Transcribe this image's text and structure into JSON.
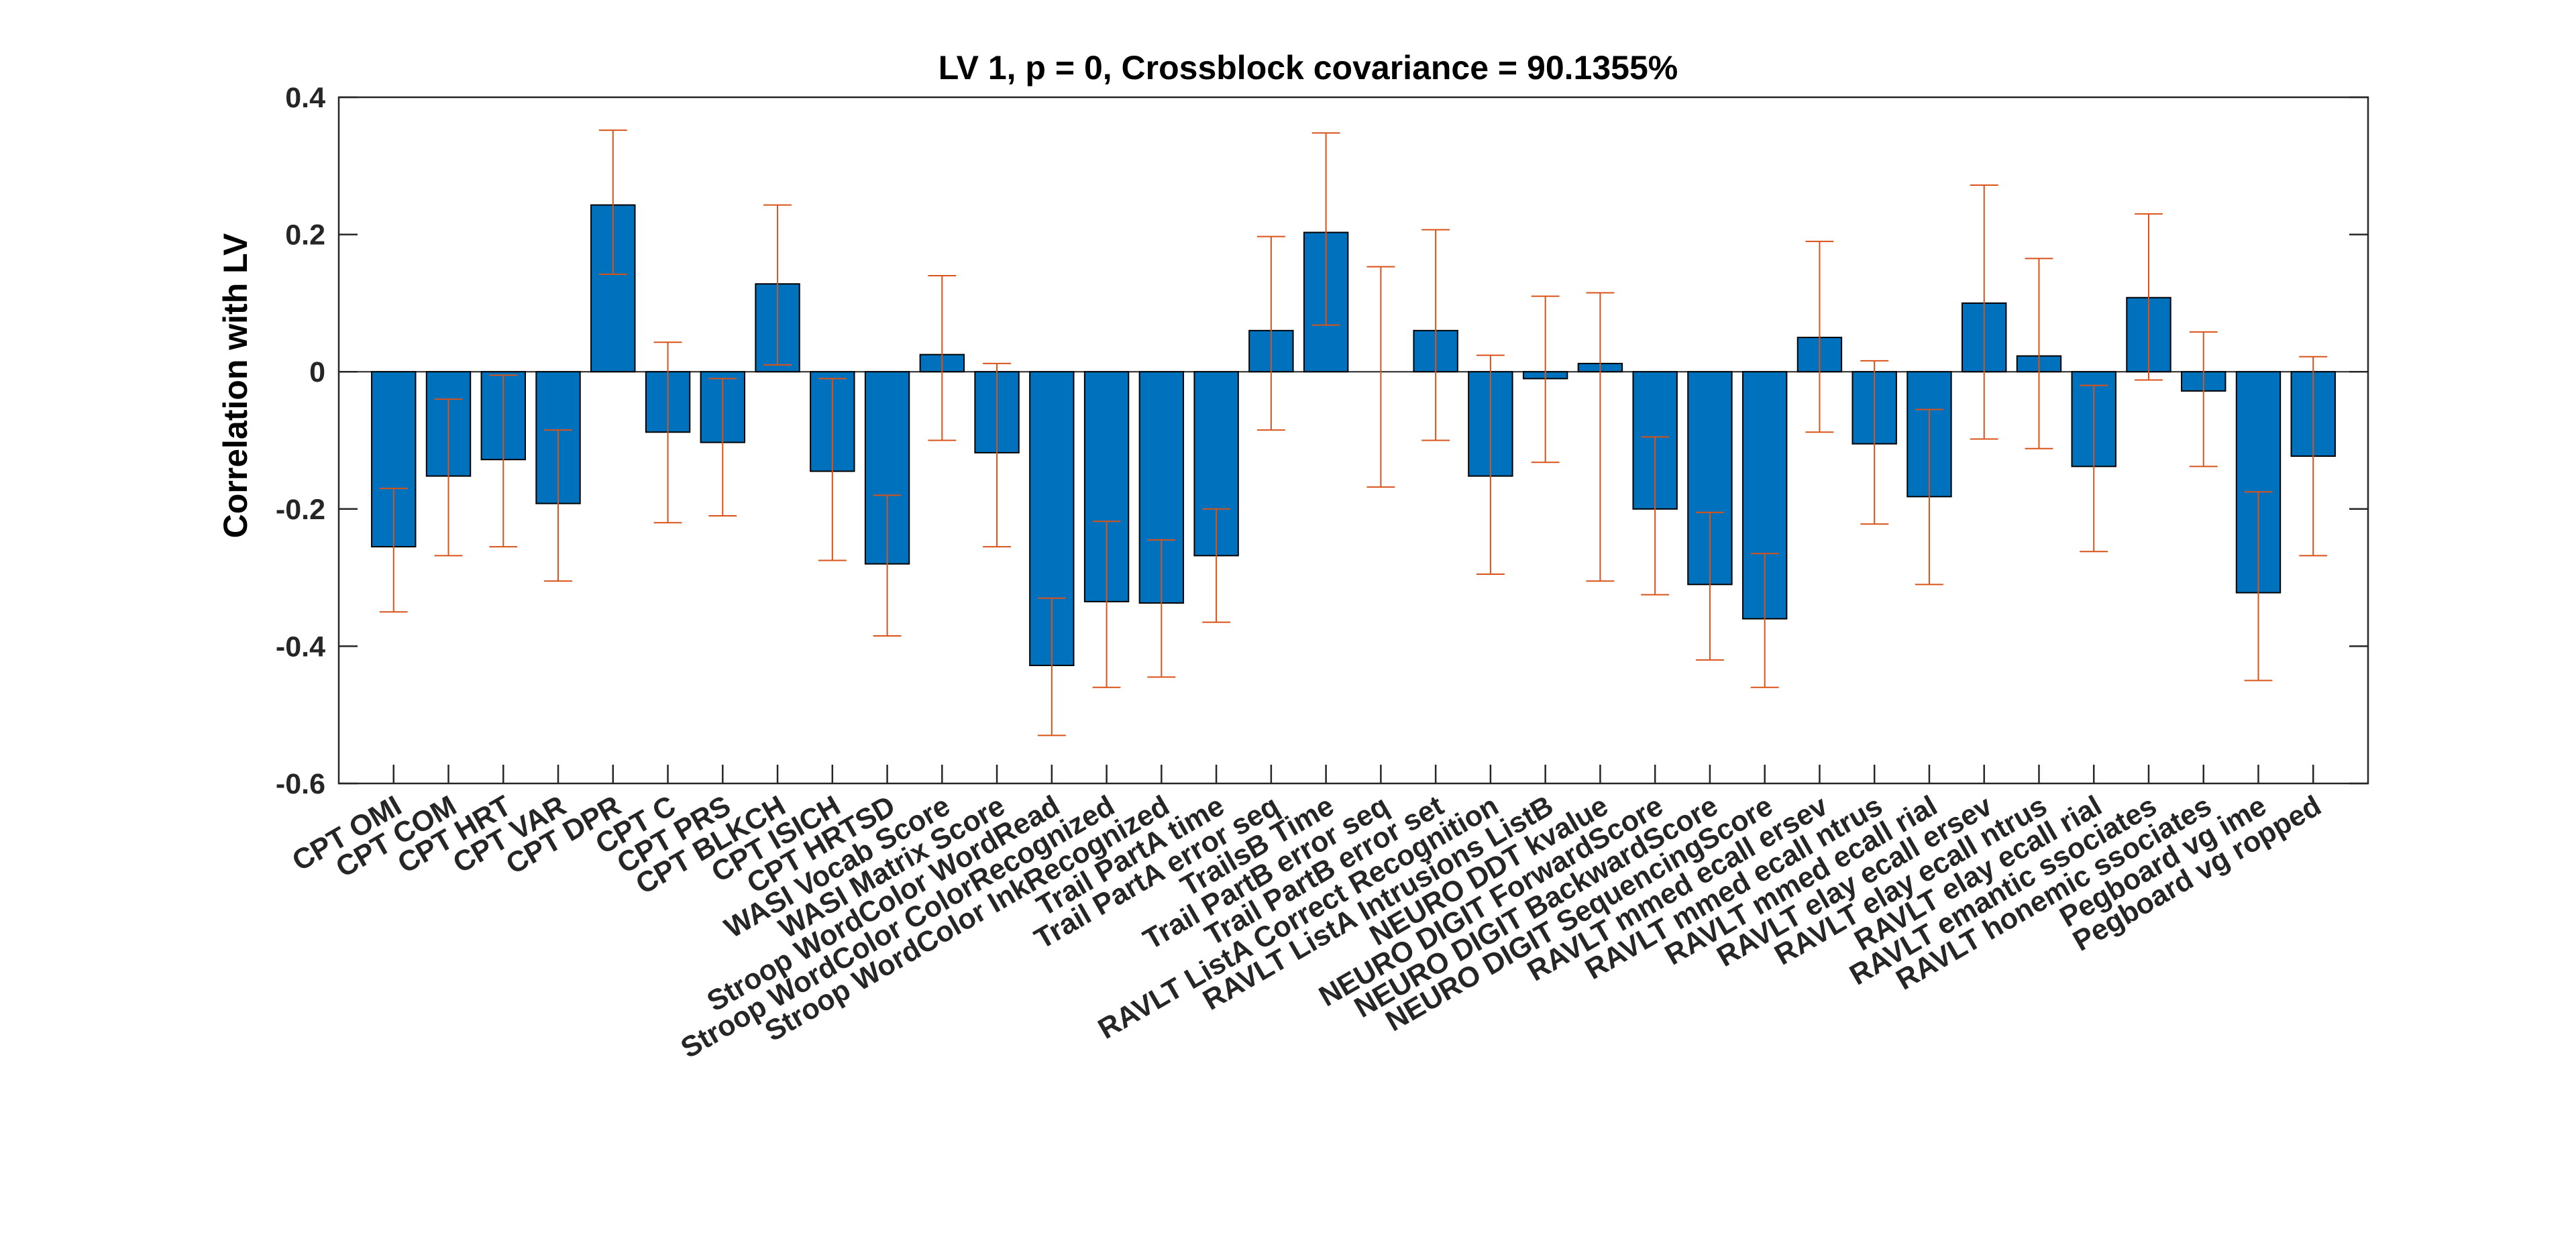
{
  "chart_data": {
    "type": "bar",
    "title": "LV 1, p = 0, Crossblock covariance = 90.1355%",
    "xlabel": "",
    "ylabel": "Correlation with LV",
    "ylim": [
      -0.6,
      0.4
    ],
    "yticks": [
      "-0.6",
      "-0.4",
      "-0.2",
      "0",
      "0.2",
      "0.4"
    ],
    "grid": false,
    "legend": "none",
    "colors": {
      "bar": "#0072BD",
      "bar_edge": "#000000",
      "errorbar": "#D95319",
      "axis": "#262626"
    },
    "categories": [
      "CPT OMI",
      "CPT COM",
      "CPT HRT",
      "CPT VAR",
      "CPT DPR",
      "CPT C",
      "CPT PRS",
      "CPT BLKCH",
      "CPT ISICH",
      "CPT HRTSD",
      "WASI Vocab Score",
      "WASI Matrix Score",
      "Stroop WordColor WordRead",
      "Stroop WordColor ColorRecognized",
      "Stroop WordColor InkRecognized",
      "Trail PartA time",
      "Trail PartA error seq",
      "TrailsB Time",
      "Trail PartB error seq",
      "Trail PartB error set",
      "RAVLT ListA Correct Recognition",
      "RAVLT ListA Intrusions ListB",
      "NEURO DDT kvalue",
      "NEURO DIGIT ForwardScore",
      "NEURO DIGIT BackwardScore",
      "NEURO DIGIT SequencingScore",
      "RAVLT mmed ecall ersev",
      "RAVLT mmed ecall ntrus",
      "RAVLT mmed ecall rial",
      "RAVLT elay ecall ersev",
      "RAVLT elay ecall ntrus",
      "RAVLT elay ecall rial",
      "RAVLT emantic ssociates",
      "RAVLT honemic ssociates",
      "Pegboard vg ime",
      "Pegboard vg ropped"
    ],
    "values": [
      -0.255,
      -0.152,
      -0.128,
      -0.192,
      0.243,
      -0.088,
      -0.103,
      0.128,
      -0.145,
      -0.28,
      0.025,
      -0.118,
      -0.428,
      -0.335,
      -0.337,
      -0.268,
      0.06,
      0.203,
      0.0,
      0.06,
      -0.152,
      -0.01,
      0.012,
      -0.2,
      -0.31,
      -0.36,
      0.05,
      -0.105,
      -0.182,
      0.1,
      0.023,
      -0.138,
      0.108,
      -0.028,
      -0.322,
      -0.123
    ],
    "error_low": [
      -0.35,
      -0.268,
      -0.255,
      -0.305,
      0.142,
      -0.22,
      -0.21,
      0.01,
      -0.275,
      -0.385,
      -0.1,
      -0.255,
      -0.53,
      -0.46,
      -0.445,
      -0.365,
      -0.085,
      0.068,
      -0.168,
      -0.1,
      -0.295,
      -0.132,
      -0.305,
      -0.325,
      -0.42,
      -0.46,
      -0.088,
      -0.222,
      -0.31,
      -0.098,
      -0.112,
      -0.262,
      -0.012,
      -0.138,
      -0.45,
      -0.268
    ],
    "error_high": [
      -0.17,
      -0.04,
      -0.005,
      -0.085,
      0.352,
      0.043,
      -0.01,
      0.243,
      -0.01,
      -0.18,
      0.14,
      0.012,
      -0.33,
      -0.218,
      -0.245,
      -0.2,
      0.197,
      0.348,
      0.153,
      0.207,
      0.024,
      0.11,
      0.115,
      -0.095,
      -0.205,
      -0.265,
      0.19,
      0.016,
      -0.055,
      0.272,
      0.165,
      -0.02,
      0.23,
      0.058,
      -0.175,
      0.022
    ]
  }
}
